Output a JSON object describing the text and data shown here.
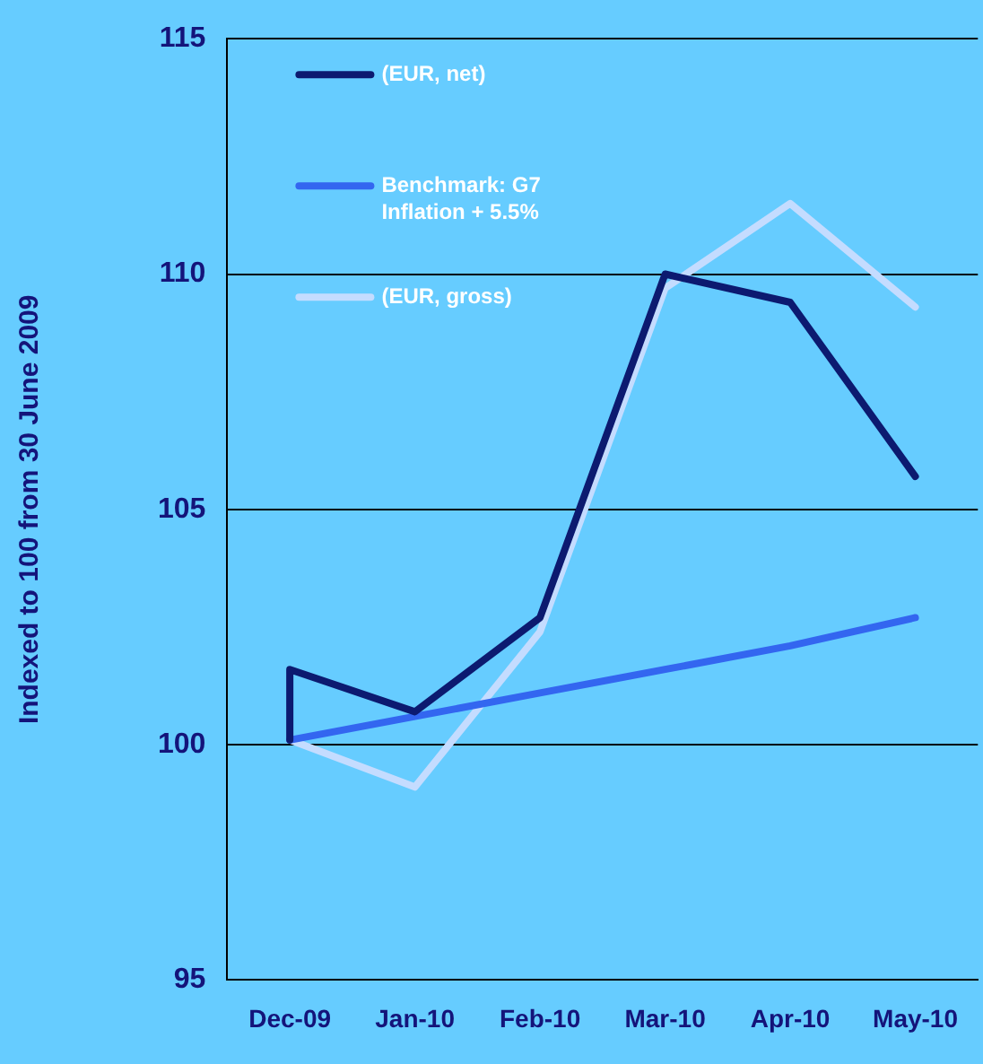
{
  "chart_data": {
    "type": "line",
    "ylabel": "Indexed to 100 from 30 June 2009",
    "categories": [
      "Dec-09",
      "Jan-10",
      "Feb-10",
      "Mar-10",
      "Apr-10",
      "May-10"
    ],
    "series": [
      {
        "name": "(EUR, net)",
        "color": "#0c1a70",
        "x": [
          "Dec-09",
          "Dec-09",
          "Jan-10",
          "Feb-10",
          "Mar-10",
          "Apr-10",
          "May-10"
        ],
        "values": [
          100.1,
          101.6,
          100.7,
          102.7,
          110,
          109.4,
          105.7
        ]
      },
      {
        "name": "Benchmark: G7 Inflation + 5.5%",
        "color": "#3366f0",
        "values": [
          100.1,
          100.6,
          101.1,
          101.6,
          102.1,
          102.7
        ]
      },
      {
        "name": "(EUR, gross)",
        "color": "#c4dcff",
        "values": [
          100.1,
          99.1,
          102.4,
          109.7,
          111.5,
          109.3
        ]
      }
    ],
    "ylim": [
      95,
      115
    ],
    "yticks": [
      95,
      100,
      105,
      110,
      115
    ],
    "grid": "y",
    "legend": "top left",
    "marker": "none",
    "line_style": "solid"
  }
}
